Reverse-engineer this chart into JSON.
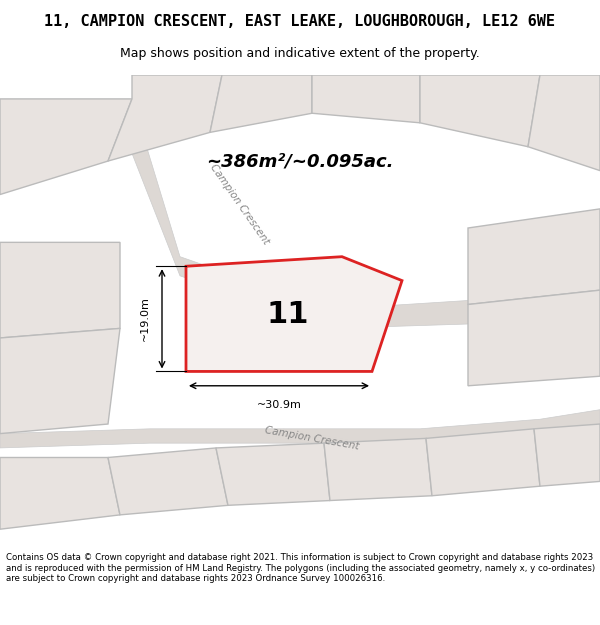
{
  "title_line1": "11, CAMPION CRESCENT, EAST LEAKE, LOUGHBOROUGH, LE12 6WE",
  "title_line2": "Map shows position and indicative extent of the property.",
  "footer": "Contains OS data © Crown copyright and database right 2021. This information is subject to Crown copyright and database rights 2023 and is reproduced with the permission of HM Land Registry. The polygons (including the associated geometry, namely x, y co-ordinates) are subject to Crown copyright and database rights 2023 Ordnance Survey 100026316.",
  "area_text": "~386m²/~0.095ac.",
  "number_label": "11",
  "dim_width": "~30.9m",
  "dim_height": "~19.0m",
  "bg_color": "#f5f0ee",
  "map_bg": "#f0ebe8",
  "highlight_color": "#cc1111",
  "road_label1": "Campion Crescent",
  "road_label2": "Campion Crescent",
  "plot_color": "#dd2222",
  "neighbor_color": "#bbbbbb",
  "neighbor_fill": "#e8e3e0"
}
